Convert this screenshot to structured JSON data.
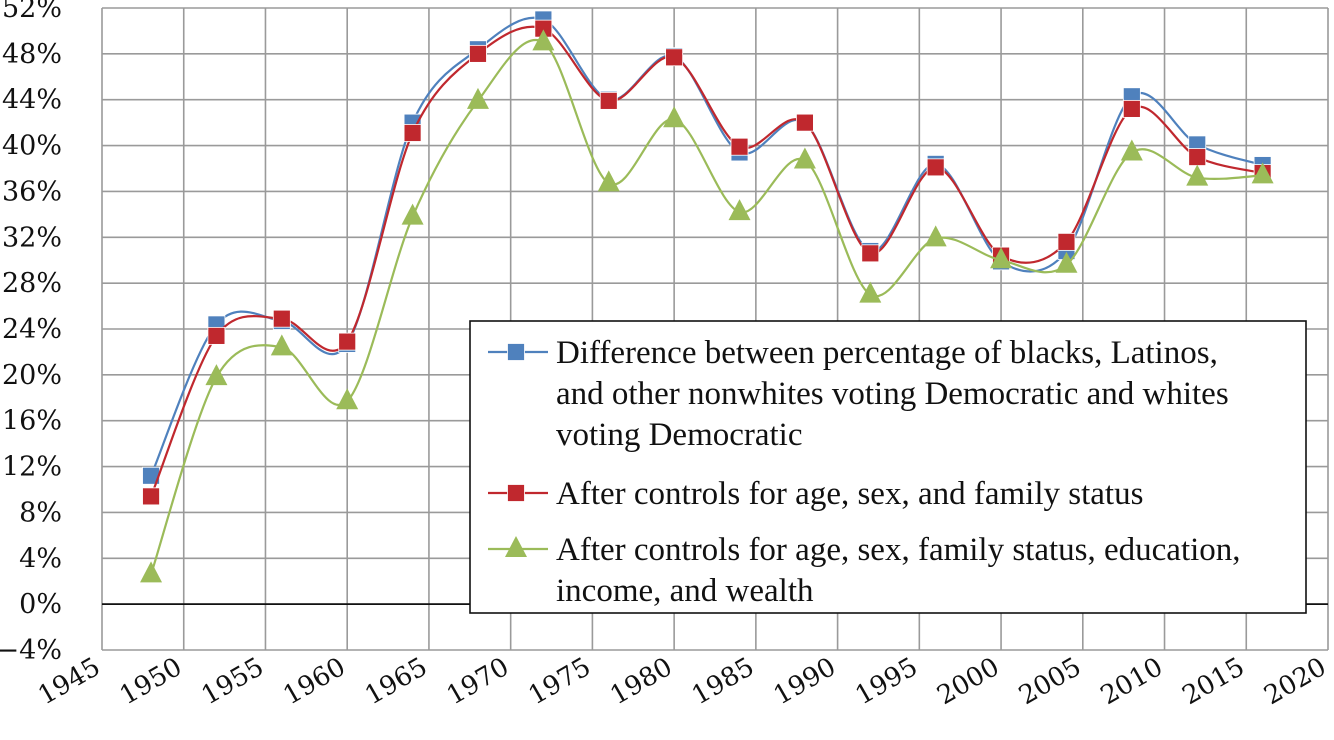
{
  "chart_data": {
    "type": "line",
    "title": "",
    "xlabel": "",
    "ylabel": "",
    "xlim": [
      1945,
      2020
    ],
    "ylim": [
      -4,
      52
    ],
    "x_ticks": [
      "1945",
      "1950",
      "1955",
      "1960",
      "1965",
      "1970",
      "1975",
      "1980",
      "1985",
      "1990",
      "1995",
      "2000",
      "2005",
      "2010",
      "2015",
      "2020"
    ],
    "y_ticks": [
      "−4%",
      "0%",
      "4%",
      "8%",
      "12%",
      "16%",
      "20%",
      "24%",
      "28%",
      "32%",
      "36%",
      "40%",
      "44%",
      "48%",
      "52%"
    ],
    "grid": true,
    "legend_position": "center-right",
    "x": [
      1948,
      1952,
      1956,
      1960,
      1964,
      1968,
      1972,
      1976,
      1980,
      1984,
      1988,
      1992,
      1996,
      2000,
      2004,
      2008,
      2012,
      2016
    ],
    "series": [
      {
        "name": "Difference between percentage of blacks, Latinos, and other nonwhites voting Democratic and whites voting Democratic",
        "color": "#4f81bd",
        "marker": "square",
        "values": [
          11.2,
          24.4,
          24.7,
          22.7,
          42.0,
          48.4,
          51.0,
          44.0,
          47.8,
          39.4,
          42.0,
          30.8,
          38.4,
          29.9,
          30.8,
          44.3,
          40.1,
          38.3
        ]
      },
      {
        "name": "After controls for age, sex, and family status",
        "color": "#c0282e",
        "marker": "square",
        "values": [
          9.4,
          23.4,
          24.9,
          22.9,
          41.1,
          48.0,
          50.2,
          43.9,
          47.7,
          39.9,
          42.0,
          30.6,
          38.1,
          30.4,
          31.6,
          43.2,
          39.0,
          37.6
        ]
      },
      {
        "name": "After controls for age, sex, family status, education, income, and wealth",
        "color": "#9bbb59",
        "marker": "triangle",
        "values": [
          2.6,
          19.8,
          22.4,
          17.7,
          33.8,
          43.9,
          49.0,
          36.7,
          42.3,
          34.2,
          38.7,
          27.0,
          31.9,
          30.0,
          29.6,
          39.4,
          37.2,
          37.4
        ]
      }
    ],
    "legend_lines": [
      [
        "Difference between percentage of blacks, Latinos,",
        "and other nonwhites voting Democratic and whites",
        "voting Democratic"
      ],
      [
        "After controls for age, sex, and family status"
      ],
      [
        "After controls for age, sex, family status, education,",
        "income, and wealth"
      ]
    ]
  }
}
